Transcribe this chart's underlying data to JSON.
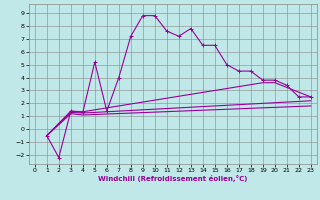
{
  "xlabel": "Windchill (Refroidissement éolien,°C)",
  "bg_color": "#c0e8e8",
  "grid_color": "#888888",
  "line_color": "#990099",
  "xlim": [
    -0.5,
    23.5
  ],
  "ylim": [
    -2.7,
    9.7
  ],
  "xticks": [
    0,
    1,
    2,
    3,
    4,
    5,
    6,
    7,
    8,
    9,
    10,
    11,
    12,
    13,
    14,
    15,
    16,
    17,
    18,
    19,
    20,
    21,
    22,
    23
  ],
  "yticks": [
    -2,
    -1,
    0,
    1,
    2,
    3,
    4,
    5,
    6,
    7,
    8,
    9
  ],
  "series_main": {
    "x": [
      1,
      2,
      3,
      4,
      5,
      6,
      7,
      8,
      9,
      10,
      11,
      12,
      13,
      14,
      15,
      16,
      17,
      18,
      19,
      20,
      21,
      22,
      23
    ],
    "y": [
      -0.5,
      -2.2,
      1.4,
      1.3,
      5.2,
      1.4,
      4.0,
      7.2,
      8.8,
      8.8,
      7.6,
      7.2,
      7.8,
      6.5,
      6.5,
      5.0,
      4.5,
      4.5,
      3.8,
      3.8,
      3.4,
      2.5,
      2.5
    ]
  },
  "series_lines": [
    {
      "x": [
        1,
        3,
        4,
        19,
        20,
        23
      ],
      "y": [
        -0.5,
        1.4,
        1.35,
        3.6,
        3.6,
        2.5
      ]
    },
    {
      "x": [
        1,
        3,
        4,
        23
      ],
      "y": [
        -0.5,
        1.3,
        1.25,
        2.2
      ]
    },
    {
      "x": [
        1,
        3,
        4,
        23
      ],
      "y": [
        -0.5,
        1.2,
        1.1,
        1.8
      ]
    }
  ]
}
